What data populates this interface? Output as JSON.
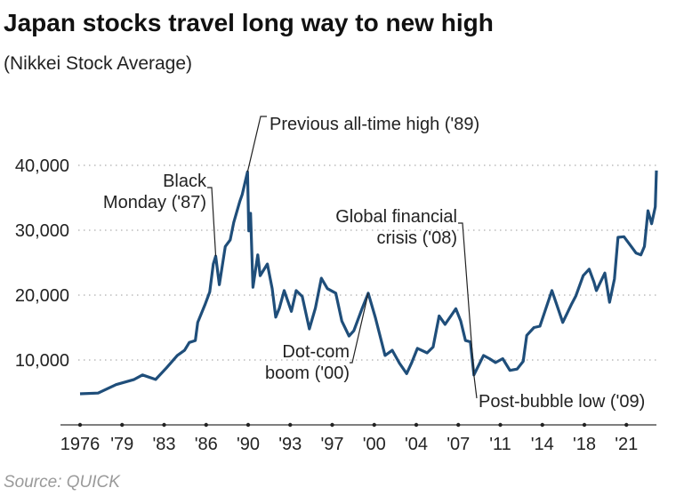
{
  "title": "Japan stocks travel long way to new high",
  "subtitle": "(Nikkei Stock Average)",
  "source": "Source: QUICK",
  "chart_data": {
    "type": "line",
    "title": "Japan stocks travel long way to new high",
    "subtitle": "(Nikkei Stock Average)",
    "xlabel": "",
    "ylabel": "",
    "xlim": [
      1976,
      2024
    ],
    "ylim": [
      0,
      40000
    ],
    "grid": true,
    "line_color": "#1f4e7a",
    "x_ticks": [
      1976,
      1979.5,
      1983,
      1986.5,
      1990,
      1993.5,
      1997,
      2000.5,
      2004,
      2007.5,
      2011,
      2014.5,
      2018,
      2021.5
    ],
    "x_tick_labels": [
      "1976",
      "'79",
      "'83",
      "'86",
      "'90",
      "'93",
      "'97",
      "'00",
      "'04",
      "'07",
      "'11",
      "'14",
      "'18",
      "'21"
    ],
    "y_ticks": [
      10000,
      20000,
      30000,
      40000
    ],
    "y_tick_labels": [
      "10,000",
      "20,000",
      "30,000",
      "40,000"
    ],
    "series": [
      {
        "points": [
          [
            1976.0,
            4800
          ],
          [
            1977.5,
            4900
          ],
          [
            1979.0,
            6200
          ],
          [
            1980.5,
            7000
          ],
          [
            1981.2,
            7700
          ],
          [
            1982.3,
            7000
          ],
          [
            1983.2,
            8800
          ],
          [
            1984.1,
            10700
          ],
          [
            1984.7,
            11500
          ],
          [
            1985.1,
            12700
          ],
          [
            1985.6,
            13000
          ],
          [
            1985.8,
            15800
          ],
          [
            1986.4,
            18500
          ],
          [
            1986.8,
            20500
          ],
          [
            1987.1,
            24800
          ],
          [
            1987.3,
            26000
          ],
          [
            1987.6,
            21600
          ],
          [
            1988.1,
            27500
          ],
          [
            1988.5,
            28500
          ],
          [
            1988.8,
            31200
          ],
          [
            1989.3,
            34400
          ],
          [
            1989.5,
            35500
          ],
          [
            1989.95,
            39000
          ],
          [
            1990.05,
            29900
          ],
          [
            1990.2,
            32600
          ],
          [
            1990.4,
            21200
          ],
          [
            1990.8,
            26200
          ],
          [
            1991.0,
            23000
          ],
          [
            1991.6,
            24800
          ],
          [
            1992.0,
            21000
          ],
          [
            1992.3,
            16600
          ],
          [
            1992.6,
            18000
          ],
          [
            1993.0,
            20700
          ],
          [
            1993.6,
            17500
          ],
          [
            1994.0,
            20700
          ],
          [
            1994.5,
            19800
          ],
          [
            1995.1,
            14800
          ],
          [
            1995.6,
            18000
          ],
          [
            1996.1,
            22600
          ],
          [
            1996.6,
            21000
          ],
          [
            1997.3,
            20300
          ],
          [
            1997.8,
            16000
          ],
          [
            1998.4,
            13700
          ],
          [
            1998.8,
            14500
          ],
          [
            1999.5,
            18000
          ],
          [
            2000.0,
            20300
          ],
          [
            2000.6,
            16500
          ],
          [
            2001.4,
            10700
          ],
          [
            2002.0,
            11500
          ],
          [
            2002.6,
            9500
          ],
          [
            2003.2,
            7900
          ],
          [
            2003.6,
            9500
          ],
          [
            2004.1,
            11800
          ],
          [
            2004.9,
            11100
          ],
          [
            2005.4,
            12000
          ],
          [
            2005.9,
            16800
          ],
          [
            2006.4,
            15500
          ],
          [
            2007.3,
            17900
          ],
          [
            2007.7,
            16000
          ],
          [
            2008.1,
            13000
          ],
          [
            2008.5,
            12800
          ],
          [
            2008.8,
            7700
          ],
          [
            2009.6,
            10700
          ],
          [
            2010.1,
            10200
          ],
          [
            2010.6,
            9600
          ],
          [
            2011.2,
            10200
          ],
          [
            2011.8,
            8400
          ],
          [
            2012.4,
            8600
          ],
          [
            2012.9,
            9800
          ],
          [
            2013.2,
            13800
          ],
          [
            2013.8,
            15000
          ],
          [
            2014.3,
            15200
          ],
          [
            2015.3,
            20700
          ],
          [
            2016.2,
            15800
          ],
          [
            2016.9,
            18500
          ],
          [
            2017.3,
            19900
          ],
          [
            2017.9,
            23000
          ],
          [
            2018.4,
            24000
          ],
          [
            2018.8,
            22000
          ],
          [
            2019.0,
            20700
          ],
          [
            2019.7,
            23400
          ],
          [
            2020.1,
            18900
          ],
          [
            2020.5,
            22500
          ],
          [
            2020.8,
            28900
          ],
          [
            2021.3,
            29000
          ],
          [
            2021.9,
            27500
          ],
          [
            2022.3,
            26500
          ],
          [
            2022.7,
            26200
          ],
          [
            2023.0,
            27500
          ],
          [
            2023.3,
            33000
          ],
          [
            2023.6,
            31000
          ],
          [
            2023.9,
            33600
          ],
          [
            2024.0,
            39200
          ]
        ]
      }
    ],
    "annotations": [
      {
        "lines": [
          "Previous all-time high ('89)"
        ],
        "x": 1989.95,
        "y": 39000
      },
      {
        "lines": [
          "Black",
          "Monday ('87)"
        ],
        "x": 1987.3,
        "y": 26000
      },
      {
        "lines": [
          "Global financial",
          "crisis ('08)"
        ],
        "x": 2008.8,
        "y": 7700
      },
      {
        "lines": [
          "Dot-com",
          "boom ('00)"
        ],
        "x": 2000.0,
        "y": 20300
      },
      {
        "lines": [
          "Post-bubble low ('09)"
        ],
        "x": 2008.8,
        "y": 7700
      }
    ]
  }
}
